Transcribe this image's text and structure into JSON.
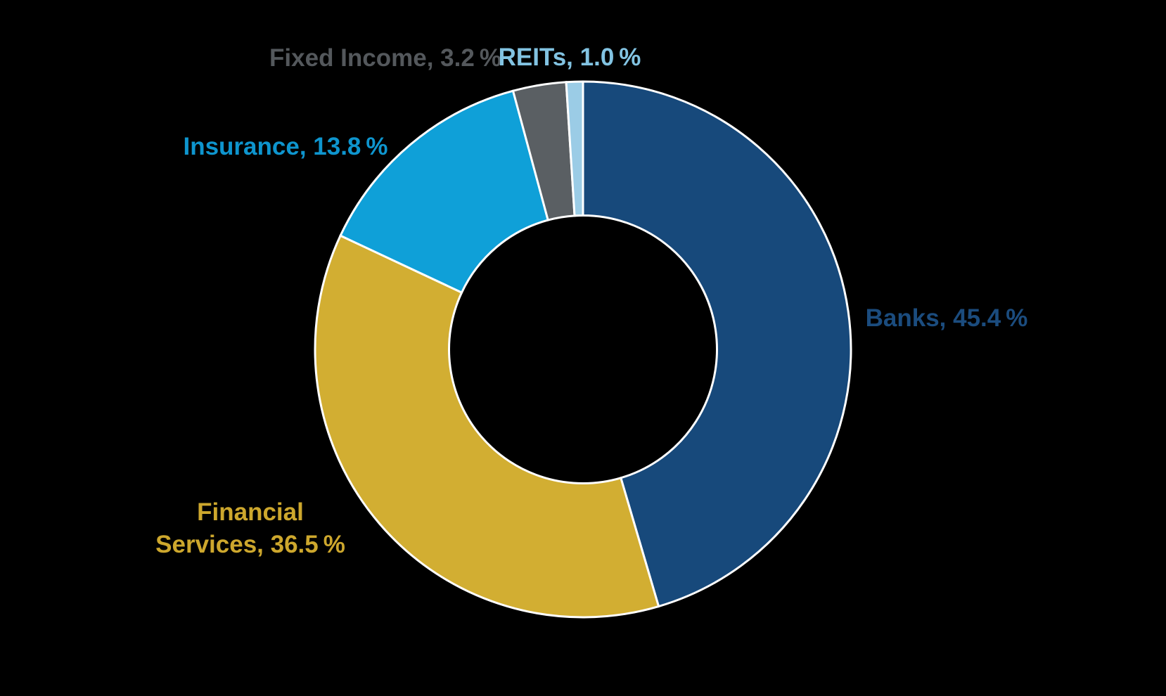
{
  "page": {
    "background_color": "#000000",
    "separator_color": "#FFFFFF"
  },
  "chart_data": {
    "type": "pie",
    "subtype": "donut",
    "title": "",
    "unit": "%",
    "direction": "clockwise",
    "start_angle_deg": 0,
    "inner_radius_ratio": 0.5,
    "separator_color": "#FFFFFF",
    "categories": [
      "Banks",
      "Financial Services",
      "Insurance",
      "Fixed Income",
      "REITs"
    ],
    "values": [
      45.4,
      36.5,
      13.8,
      3.2,
      1.0
    ],
    "slices": [
      {
        "name": "Banks",
        "value": 45.4,
        "label": "Banks, 45.4 %",
        "color": "#17497B",
        "label_color": "#1B4C7E"
      },
      {
        "name": "Financial Services",
        "value": 36.5,
        "label": "Financial\nServices, 36.5 %",
        "color": "#D2AE32",
        "label_color": "#CDA72D"
      },
      {
        "name": "Insurance",
        "value": 13.8,
        "label": "Insurance, 13.8 %",
        "color": "#0FA0D8",
        "label_color": "#0E95CE"
      },
      {
        "name": "Fixed Income",
        "value": 3.2,
        "label": "Fixed Income, 3.2 %",
        "color": "#5A5F63",
        "label_color": "#54585C"
      },
      {
        "name": "REITs",
        "value": 1.0,
        "label": "REITs, 1.0 %",
        "color": "#9BCCE6",
        "label_color": "#82C3E2"
      }
    ]
  }
}
